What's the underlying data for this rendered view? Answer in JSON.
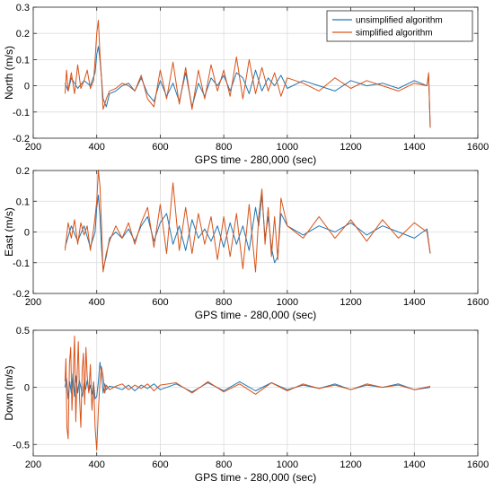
{
  "figure": {
    "legend": {
      "entries": [
        {
          "label": "unsimplified algorithm",
          "color": "#1f77b4"
        },
        {
          "label": "simplified algorithm",
          "color": "#d95319"
        }
      ]
    }
  },
  "chart_data": [
    {
      "type": "line",
      "xlabel": "GPS time - 280,000 (sec)",
      "ylabel": "North (m/s)",
      "xlim": [
        200,
        1600
      ],
      "ylim": [
        -0.2,
        0.3
      ],
      "xticks": [
        200,
        400,
        600,
        800,
        1000,
        1200,
        1400,
        1600
      ],
      "yticks": [
        -0.2,
        -0.1,
        0,
        0.1,
        0.2,
        0.3
      ],
      "ytick_labels": [
        "-0.2",
        "-0.1",
        "0",
        "0.1",
        "0.2",
        "0.3"
      ],
      "grid": true,
      "legend_position": "top-right",
      "series": [
        {
          "name": "unsimplified algorithm",
          "color": "#1f77b4",
          "x": [
            300,
            310,
            320,
            340,
            360,
            380,
            395,
            400,
            405,
            410,
            415,
            420,
            430,
            440,
            460,
            480,
            500,
            520,
            540,
            560,
            580,
            600,
            620,
            640,
            660,
            680,
            700,
            720,
            740,
            760,
            780,
            800,
            820,
            840,
            860,
            880,
            900,
            920,
            940,
            960,
            980,
            1000,
            1050,
            1100,
            1150,
            1200,
            1250,
            1300,
            1350,
            1400,
            1440,
            1445,
            1450
          ],
          "y": [
            0.01,
            -0.02,
            0.03,
            -0.01,
            0.02,
            0.0,
            0.05,
            0.12,
            0.15,
            0.1,
            0.03,
            -0.05,
            -0.08,
            -0.03,
            -0.02,
            0.0,
            0.01,
            -0.02,
            0.03,
            -0.03,
            -0.06,
            0.02,
            -0.04,
            0.01,
            -0.06,
            0.05,
            -0.08,
            0.01,
            -0.04,
            0.03,
            0.0,
            0.04,
            -0.02,
            0.05,
            0.03,
            -0.03,
            0.06,
            -0.02,
            0.03,
            0.0,
            0.04,
            -0.01,
            0.02,
            0.0,
            -0.02,
            0.02,
            0.0,
            0.01,
            -0.01,
            0.02,
            0.0,
            0.04,
            -0.16
          ]
        },
        {
          "name": "simplified algorithm",
          "color": "#d95319",
          "x": [
            300,
            305,
            310,
            320,
            330,
            340,
            350,
            360,
            370,
            380,
            390,
            395,
            400,
            405,
            410,
            415,
            420,
            430,
            440,
            460,
            480,
            500,
            520,
            540,
            560,
            580,
            600,
            620,
            640,
            660,
            680,
            700,
            720,
            740,
            760,
            780,
            800,
            820,
            840,
            860,
            880,
            900,
            920,
            940,
            960,
            980,
            1000,
            1050,
            1100,
            1150,
            1200,
            1250,
            1300,
            1350,
            1400,
            1440,
            1445,
            1450
          ],
          "y": [
            -0.03,
            0.06,
            -0.02,
            0.05,
            -0.03,
            0.08,
            -0.01,
            0.02,
            0.06,
            -0.01,
            0.02,
            0.1,
            0.2,
            0.25,
            0.12,
            0.03,
            -0.09,
            -0.05,
            -0.02,
            -0.01,
            0.01,
            0.0,
            -0.02,
            0.04,
            -0.05,
            -0.08,
            0.06,
            -0.05,
            0.09,
            -0.07,
            0.07,
            -0.09,
            0.06,
            -0.05,
            0.08,
            -0.02,
            0.06,
            -0.04,
            0.11,
            -0.05,
            0.1,
            -0.03,
            0.07,
            -0.02,
            0.05,
            -0.04,
            0.03,
            0.01,
            -0.02,
            0.03,
            -0.01,
            0.02,
            0.0,
            -0.02,
            0.01,
            0.0,
            0.05,
            -0.16
          ]
        }
      ]
    },
    {
      "type": "line",
      "xlabel": "GPS time - 280,000 (sec)",
      "ylabel": "East (m/s)",
      "xlim": [
        200,
        1600
      ],
      "ylim": [
        -0.2,
        0.2
      ],
      "xticks": [
        200,
        400,
        600,
        800,
        1000,
        1200,
        1400,
        1600
      ],
      "yticks": [
        -0.2,
        -0.1,
        0,
        0.1,
        0.2
      ],
      "ytick_labels": [
        "-0.2",
        "-0.1",
        "0",
        "0.1",
        "0.2"
      ],
      "grid": true,
      "series": [
        {
          "name": "unsimplified algorithm",
          "color": "#1f77b4",
          "x": [
            300,
            320,
            340,
            360,
            380,
            395,
            400,
            405,
            410,
            415,
            420,
            430,
            440,
            460,
            480,
            500,
            520,
            540,
            560,
            580,
            600,
            620,
            640,
            660,
            680,
            700,
            720,
            740,
            760,
            780,
            800,
            820,
            840,
            860,
            880,
            900,
            910,
            920,
            930,
            940,
            950,
            960,
            970,
            980,
            1000,
            1050,
            1100,
            1150,
            1200,
            1250,
            1300,
            1350,
            1400,
            1440,
            1450
          ],
          "y": [
            -0.05,
            0.02,
            -0.03,
            0.02,
            -0.05,
            0.0,
            0.08,
            0.12,
            0.05,
            -0.05,
            -0.12,
            -0.08,
            -0.02,
            0.0,
            -0.02,
            0.01,
            -0.03,
            0.02,
            0.05,
            -0.03,
            0.03,
            0.06,
            -0.04,
            0.02,
            -0.06,
            0.04,
            -0.02,
            0.01,
            -0.03,
            0.02,
            -0.05,
            0.03,
            -0.04,
            0.02,
            -0.06,
            0.08,
            0.02,
            0.12,
            -0.02,
            0.05,
            -0.05,
            -0.1,
            -0.08,
            0.06,
            0.02,
            -0.01,
            0.02,
            0.0,
            0.03,
            -0.01,
            0.02,
            0.0,
            -0.02,
            0.01,
            -0.07
          ]
        },
        {
          "name": "simplified algorithm",
          "color": "#d95319",
          "x": [
            300,
            310,
            320,
            330,
            340,
            350,
            360,
            370,
            380,
            390,
            395,
            400,
            405,
            410,
            415,
            420,
            430,
            440,
            460,
            480,
            500,
            520,
            540,
            560,
            580,
            600,
            620,
            640,
            660,
            680,
            700,
            720,
            740,
            760,
            780,
            800,
            820,
            840,
            860,
            880,
            900,
            910,
            920,
            930,
            940,
            950,
            960,
            970,
            980,
            1000,
            1050,
            1100,
            1150,
            1200,
            1250,
            1300,
            1350,
            1400,
            1440,
            1450
          ],
          "y": [
            -0.06,
            0.03,
            -0.02,
            0.04,
            -0.04,
            0.03,
            -0.01,
            0.02,
            -0.06,
            0.01,
            0.05,
            0.1,
            0.2,
            0.15,
            0.02,
            -0.13,
            -0.07,
            -0.03,
            0.02,
            -0.02,
            0.03,
            -0.04,
            0.03,
            0.08,
            -0.05,
            0.09,
            -0.07,
            0.16,
            -0.06,
            0.08,
            -0.07,
            0.06,
            -0.04,
            0.05,
            -0.09,
            0.05,
            -0.08,
            0.06,
            -0.12,
            0.09,
            -0.13,
            0.05,
            0.14,
            -0.04,
            0.08,
            -0.08,
            0.05,
            -0.09,
            0.11,
            0.02,
            -0.02,
            0.05,
            -0.02,
            0.04,
            -0.03,
            0.04,
            -0.02,
            0.03,
            0.0,
            -0.07
          ]
        }
      ]
    },
    {
      "type": "line",
      "xlabel": "GPS time - 280,000 (sec)",
      "ylabel": "Down (m/s)",
      "xlim": [
        200,
        1600
      ],
      "ylim": [
        -0.6,
        0.5
      ],
      "xticks": [
        200,
        400,
        600,
        800,
        1000,
        1200,
        1400,
        1600
      ],
      "yticks": [
        -0.5,
        0,
        0.5
      ],
      "ytick_labels": [
        "-0.5",
        "0",
        "0.5"
      ],
      "grid": true,
      "series": [
        {
          "name": "unsimplified algorithm",
          "color": "#1f77b4",
          "x": [
            300,
            305,
            310,
            315,
            320,
            325,
            330,
            335,
            340,
            345,
            350,
            355,
            360,
            365,
            370,
            375,
            380,
            385,
            390,
            395,
            400,
            405,
            410,
            415,
            420,
            425,
            430,
            440,
            460,
            480,
            500,
            520,
            540,
            560,
            580,
            600,
            650,
            700,
            750,
            800,
            850,
            900,
            950,
            1000,
            1050,
            1100,
            1150,
            1200,
            1250,
            1300,
            1350,
            1400,
            1450
          ],
          "y": [
            0.0,
            0.08,
            -0.1,
            0.05,
            -0.05,
            0.12,
            -0.08,
            0.1,
            -0.05,
            0.06,
            0.0,
            -0.08,
            0.04,
            -0.02,
            0.06,
            -0.04,
            0.02,
            -0.06,
            0.04,
            -0.1,
            -0.08,
            0.05,
            0.22,
            0.12,
            -0.05,
            0.03,
            -0.02,
            0.01,
            0.0,
            -0.02,
            0.02,
            -0.03,
            0.02,
            -0.01,
            0.03,
            -0.02,
            0.03,
            -0.04,
            0.04,
            -0.03,
            0.05,
            -0.03,
            0.04,
            -0.02,
            0.02,
            -0.01,
            0.03,
            -0.02,
            0.02,
            0.0,
            0.03,
            -0.02,
            0.0
          ]
        },
        {
          "name": "simplified algorithm",
          "color": "#d95319",
          "x": [
            300,
            303,
            306,
            310,
            314,
            318,
            322,
            326,
            330,
            334,
            338,
            342,
            346,
            350,
            354,
            358,
            362,
            366,
            370,
            375,
            380,
            385,
            390,
            395,
            400,
            405,
            410,
            415,
            420,
            425,
            430,
            440,
            460,
            480,
            500,
            520,
            540,
            560,
            580,
            600,
            650,
            700,
            750,
            800,
            850,
            900,
            950,
            1000,
            1050,
            1100,
            1150,
            1200,
            1250,
            1300,
            1350,
            1400,
            1450
          ],
          "y": [
            0.05,
            0.25,
            -0.35,
            -0.45,
            0.2,
            0.35,
            -0.2,
            0.1,
            0.45,
            -0.3,
            0.1,
            0.4,
            -0.1,
            -0.35,
            0.15,
            0.3,
            -0.15,
            0.35,
            0.1,
            -0.05,
            0.2,
            -0.2,
            0.05,
            -0.35,
            -0.55,
            -0.2,
            0.05,
            0.18,
            0.1,
            -0.05,
            0.02,
            -0.02,
            0.01,
            0.03,
            -0.02,
            0.02,
            -0.01,
            0.03,
            -0.03,
            0.02,
            0.04,
            -0.05,
            0.05,
            -0.04,
            0.03,
            -0.06,
            0.04,
            -0.03,
            0.03,
            -0.01,
            0.02,
            -0.02,
            0.03,
            0.0,
            0.02,
            -0.02,
            0.01
          ]
        }
      ]
    }
  ]
}
